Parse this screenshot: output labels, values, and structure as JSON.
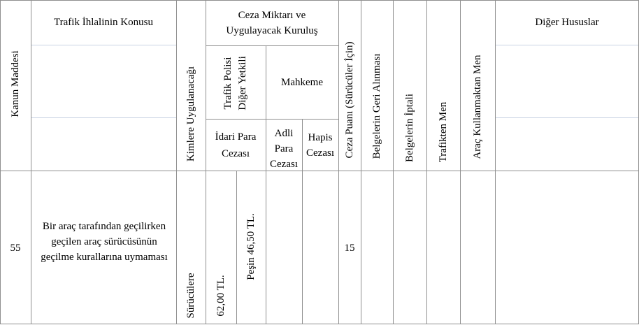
{
  "headers": {
    "kanun_maddesi": "Kanun Maddesi",
    "ihlal_konusu": "Trafik İhlalinin Konusu",
    "kimlere": "Kimlere Uygulanacağı",
    "ceza_miktari_line1": "Ceza Miktarı ve",
    "ceza_miktari_line2": "Uygulayacak Kuruluş",
    "trafik_polisi_line1": "Trafik Polisi",
    "trafik_polisi_line2": "Diğer Yetkili",
    "mahkeme": "Mahkeme",
    "idari_line1": "İdari Para",
    "idari_line2": "Cezası",
    "adli_line1": "Adli",
    "adli_line2": "Para",
    "adli_line3": "Cezası",
    "hapis_line1": "Hapis",
    "hapis_line2": "Cezası",
    "ceza_puani": "Ceza Puanı (Sürücüler İçin)",
    "belge_geri": "Belgelerin Geri Alınması",
    "belge_iptal": "Belgelerin İptali",
    "trafikten_men": "Trafikten Men",
    "arac_men": "Araç Kullanmaktan Men",
    "diger": "Diğer Hususlar"
  },
  "row": {
    "madde": "55",
    "konu": "Bir araç tarafından geçilirken geçilen araç sürücüsünün geçilme kurallarına uymaması",
    "kimlere": "Sürücülere",
    "idari_tutar": "62,00 TL.",
    "pesin_tutar": "Peşin 46,50 TL.",
    "ceza_puani": "15"
  }
}
